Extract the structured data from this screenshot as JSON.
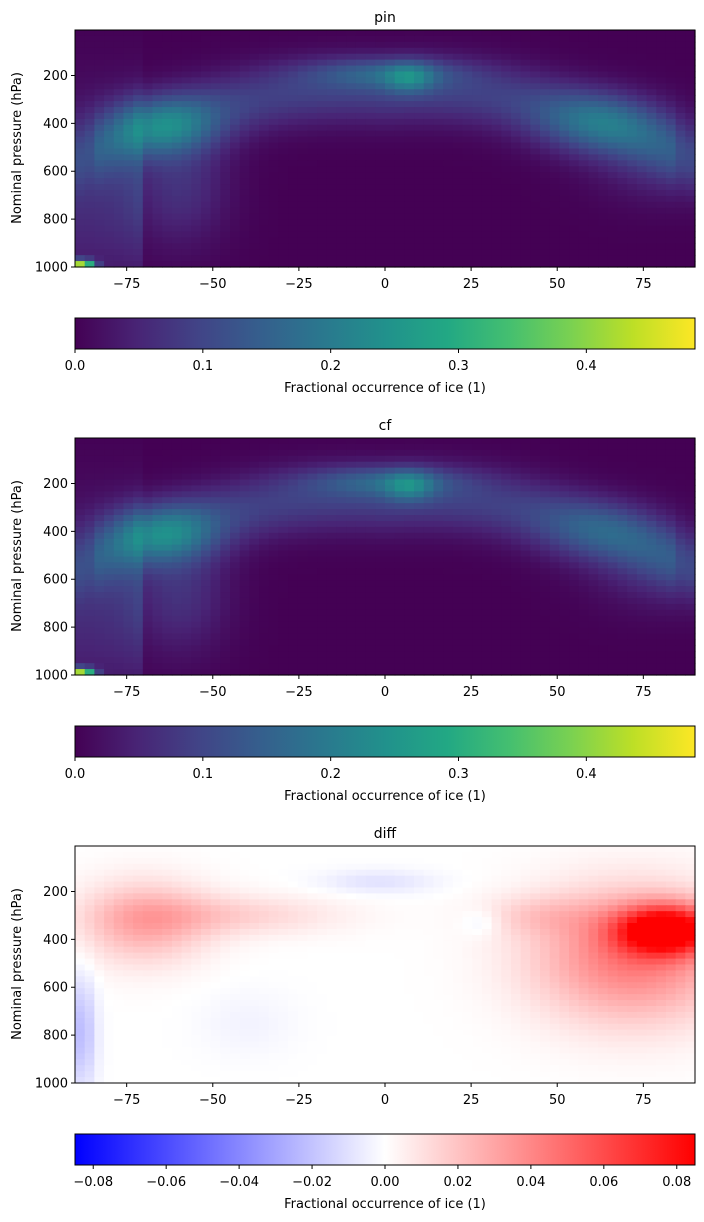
{
  "chart_data": [
    {
      "type": "heatmap",
      "title": "pin",
      "ylabel": "Nominal pressure (hPa)",
      "xlabel": "",
      "xlim": [
        -90,
        90
      ],
      "ylim": [
        1000,
        10
      ],
      "x_ticks": [
        -75,
        -50,
        -25,
        0,
        25,
        50,
        75
      ],
      "y_ticks": [
        200,
        400,
        600,
        800,
        1000
      ],
      "colormap": "viridis",
      "colorbar": {
        "label": "Fractional occurrence of ice (1)",
        "range": [
          0,
          0.485
        ],
        "ticks": [
          "0.0",
          "0.1",
          "0.2",
          "0.3",
          "0.4"
        ],
        "orientation": "horizontal",
        "position": "bottom"
      },
      "features": [
        {
          "description": "upper tropical peak",
          "lat": 5,
          "p": 205,
          "value": 0.25
        },
        {
          "description": "SH midlatitude band",
          "lat": -65,
          "p": 410,
          "value": 0.22
        },
        {
          "description": "NH midlatitude band",
          "lat": 62,
          "p": 400,
          "value": 0.2
        },
        {
          "description": "Antarctic surface max",
          "lat": -88,
          "p": 990,
          "value": 0.48
        }
      ]
    },
    {
      "type": "heatmap",
      "title": "cf",
      "ylabel": "Nominal pressure (hPa)",
      "xlabel": "",
      "xlim": [
        -90,
        90
      ],
      "ylim": [
        1000,
        10
      ],
      "x_ticks": [
        -75,
        -50,
        -25,
        0,
        25,
        50,
        75
      ],
      "y_ticks": [
        200,
        400,
        600,
        800,
        1000
      ],
      "colormap": "viridis",
      "colorbar": {
        "label": "Fractional occurrence of ice (1)",
        "range": [
          0,
          0.485
        ],
        "ticks": [
          "0.0",
          "0.1",
          "0.2",
          "0.3",
          "0.4"
        ],
        "orientation": "horizontal",
        "position": "bottom"
      },
      "features": [
        {
          "description": "upper tropical peak",
          "lat": 5,
          "p": 205,
          "value": 0.25
        },
        {
          "description": "SH midlatitude band",
          "lat": -65,
          "p": 410,
          "value": 0.21
        },
        {
          "description": "NH midlatitude band",
          "lat": 62,
          "p": 400,
          "value": 0.17
        },
        {
          "description": "Antarctic surface max",
          "lat": -88,
          "p": 990,
          "value": 0.48
        }
      ]
    },
    {
      "type": "heatmap",
      "title": "diff",
      "ylabel": "Nominal pressure (hPa)",
      "xlabel": "",
      "xlim": [
        -90,
        90
      ],
      "ylim": [
        1000,
        10
      ],
      "x_ticks": [
        -75,
        -50,
        -25,
        0,
        25,
        50,
        75
      ],
      "y_ticks": [
        200,
        400,
        600,
        800,
        1000
      ],
      "colormap": "bwr",
      "colorbar": {
        "label": "Fractional occurrence of ice (1)",
        "range": [
          -0.085,
          0.085
        ],
        "ticks": [
          "−0.08",
          "−0.06",
          "−0.04",
          "−0.02",
          "0.00",
          "0.02",
          "0.04",
          "0.06",
          "0.08"
        ],
        "orientation": "horizontal",
        "position": "bottom"
      },
      "features": [
        {
          "description": "NH positive max",
          "lat": 82,
          "p": 360,
          "value": 0.085
        },
        {
          "description": "SH positive band",
          "lat": -70,
          "p": 330,
          "value": 0.025
        },
        {
          "description": "polar negative",
          "lat": -88,
          "p": 800,
          "value": -0.02
        },
        {
          "description": "tropical upper negative",
          "lat": 0,
          "p": 160,
          "value": -0.01
        }
      ]
    }
  ]
}
